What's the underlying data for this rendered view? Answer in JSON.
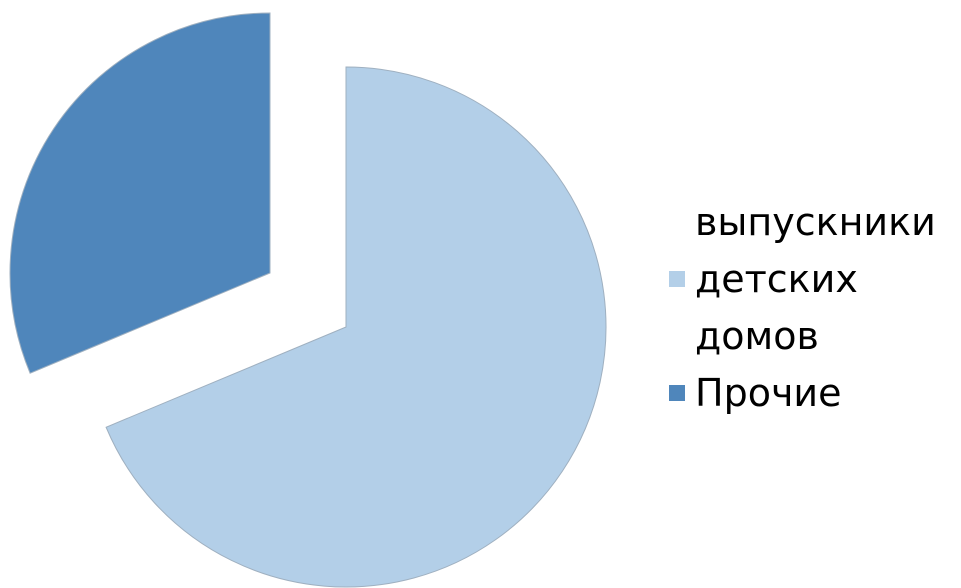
{
  "chart_data": {
    "type": "pie",
    "title": "",
    "categories": [
      "выпускники детских домов",
      "Прочие"
    ],
    "values": [
      68.7,
      31.3
    ],
    "colors": [
      "#b3cfe8",
      "#4f86bb"
    ],
    "exploded": true,
    "legend_position": "right"
  },
  "legend": {
    "items": [
      {
        "label": "выпускники детских домов",
        "color": "#b3cfe8"
      },
      {
        "label": "Прочие",
        "color": "#4f86bb"
      }
    ]
  }
}
